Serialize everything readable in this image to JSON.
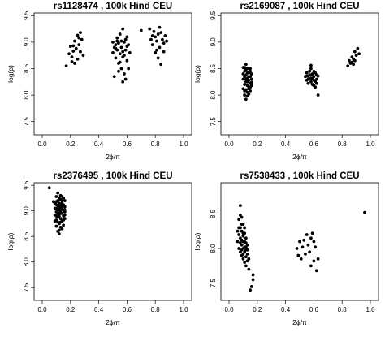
{
  "chart_data": [
    {
      "type": "scatter",
      "title": "rs1128474 , 100k Hind CEU",
      "xlabel": "2ϕ/π",
      "ylabel": "log(ρ)",
      "xlim": [
        0.0,
        1.0
      ],
      "ylim": [
        7.25,
        9.55
      ],
      "x_ticks": [
        "0.0",
        "0.2",
        "0.4",
        "0.6",
        "0.8",
        "1.0"
      ],
      "y_ticks": [
        "7.5",
        "8.0",
        "8.5",
        "9.0",
        "9.5"
      ],
      "points": [
        [
          0.17,
          8.55
        ],
        [
          0.19,
          8.78
        ],
        [
          0.2,
          8.92
        ],
        [
          0.21,
          8.72
        ],
        [
          0.22,
          8.83
        ],
        [
          0.23,
          9.02
        ],
        [
          0.23,
          8.6
        ],
        [
          0.24,
          8.88
        ],
        [
          0.25,
          9.13
        ],
        [
          0.25,
          8.68
        ],
        [
          0.26,
          8.95
        ],
        [
          0.27,
          9.18
        ],
        [
          0.27,
          8.82
        ],
        [
          0.28,
          9.05
        ],
        [
          0.29,
          8.75
        ],
        [
          0.21,
          8.63
        ],
        [
          0.26,
          9.08
        ],
        [
          0.22,
          8.93
        ],
        [
          0.5,
          8.8
        ],
        [
          0.51,
          8.9
        ],
        [
          0.52,
          8.95
        ],
        [
          0.52,
          8.7
        ],
        [
          0.53,
          8.85
        ],
        [
          0.53,
          9.08
        ],
        [
          0.54,
          8.6
        ],
        [
          0.54,
          8.98
        ],
        [
          0.55,
          8.78
        ],
        [
          0.55,
          9.15
        ],
        [
          0.56,
          8.5
        ],
        [
          0.56,
          8.9
        ],
        [
          0.57,
          9.25
        ],
        [
          0.57,
          8.72
        ],
        [
          0.58,
          9.0
        ],
        [
          0.58,
          8.4
        ],
        [
          0.59,
          8.85
        ],
        [
          0.59,
          8.3
        ],
        [
          0.6,
          9.1
        ],
        [
          0.6,
          8.65
        ],
        [
          0.61,
          8.95
        ],
        [
          0.61,
          8.5
        ],
        [
          0.51,
          8.35
        ],
        [
          0.53,
          9.02
        ],
        [
          0.55,
          8.62
        ],
        [
          0.57,
          8.82
        ],
        [
          0.59,
          9.05
        ],
        [
          0.52,
          8.88
        ],
        [
          0.56,
          9.02
        ],
        [
          0.58,
          8.75
        ],
        [
          0.6,
          8.92
        ],
        [
          0.54,
          8.45
        ],
        [
          0.57,
          8.25
        ],
        [
          0.62,
          8.8
        ],
        [
          0.5,
          9.0
        ],
        [
          0.7,
          9.22
        ],
        [
          0.76,
          9.25
        ],
        [
          0.77,
          9.05
        ],
        [
          0.78,
          8.95
        ],
        [
          0.79,
          9.2
        ],
        [
          0.8,
          8.8
        ],
        [
          0.8,
          9.1
        ],
        [
          0.81,
          9.02
        ],
        [
          0.82,
          8.7
        ],
        [
          0.82,
          9.15
        ],
        [
          0.83,
          8.9
        ],
        [
          0.83,
          9.28
        ],
        [
          0.84,
          8.58
        ],
        [
          0.85,
          9.05
        ],
        [
          0.86,
          8.98
        ],
        [
          0.87,
          9.12
        ],
        [
          0.88,
          9.02
        ],
        [
          0.78,
          9.12
        ],
        [
          0.81,
          8.85
        ],
        [
          0.84,
          9.18
        ],
        [
          0.86,
          8.82
        ]
      ]
    },
    {
      "type": "scatter",
      "title": "rs2169087 , 100k Hind CEU",
      "xlabel": "2ϕ/π",
      "ylabel": "log(ρ)",
      "xlim": [
        0.0,
        1.0
      ],
      "ylim": [
        7.25,
        9.55
      ],
      "x_ticks": [
        "0.0",
        "0.2",
        "0.4",
        "0.6",
        "0.8",
        "1.0"
      ],
      "y_ticks": [
        "7.5",
        "8.0",
        "8.5",
        "9.0",
        "9.5"
      ],
      "points": [
        [
          0.1,
          8.52
        ],
        [
          0.1,
          8.3
        ],
        [
          0.1,
          8.12
        ],
        [
          0.11,
          8.45
        ],
        [
          0.11,
          8.2
        ],
        [
          0.11,
          8.0
        ],
        [
          0.12,
          8.58
        ],
        [
          0.12,
          8.38
        ],
        [
          0.12,
          8.25
        ],
        [
          0.12,
          8.1
        ],
        [
          0.12,
          7.92
        ],
        [
          0.13,
          8.5
        ],
        [
          0.13,
          8.32
        ],
        [
          0.13,
          8.18
        ],
        [
          0.13,
          8.05
        ],
        [
          0.14,
          8.42
        ],
        [
          0.14,
          8.28
        ],
        [
          0.14,
          8.15
        ],
        [
          0.14,
          8.02
        ],
        [
          0.15,
          8.5
        ],
        [
          0.15,
          8.35
        ],
        [
          0.15,
          8.22
        ],
        [
          0.15,
          8.08
        ],
        [
          0.16,
          8.4
        ],
        [
          0.16,
          8.3
        ],
        [
          0.16,
          8.18
        ],
        [
          0.11,
          8.35
        ],
        [
          0.12,
          8.48
        ],
        [
          0.13,
          8.42
        ],
        [
          0.14,
          8.35
        ],
        [
          0.15,
          8.45
        ],
        [
          0.13,
          8.25
        ],
        [
          0.11,
          8.08
        ],
        [
          0.14,
          8.12
        ],
        [
          0.12,
          8.3
        ],
        [
          0.1,
          8.4
        ],
        [
          0.16,
          8.24
        ],
        [
          0.13,
          7.98
        ],
        [
          0.15,
          8.15
        ],
        [
          0.11,
          8.52
        ],
        [
          0.54,
          8.35
        ],
        [
          0.55,
          8.28
        ],
        [
          0.55,
          8.42
        ],
        [
          0.56,
          8.3
        ],
        [
          0.56,
          8.22
        ],
        [
          0.57,
          8.38
        ],
        [
          0.57,
          8.45
        ],
        [
          0.58,
          8.25
        ],
        [
          0.58,
          8.32
        ],
        [
          0.58,
          8.5
        ],
        [
          0.59,
          8.4
        ],
        [
          0.59,
          8.2
        ],
        [
          0.6,
          8.35
        ],
        [
          0.6,
          8.28
        ],
        [
          0.61,
          8.42
        ],
        [
          0.61,
          8.15
        ],
        [
          0.62,
          8.3
        ],
        [
          0.62,
          8.22
        ],
        [
          0.63,
          8.36
        ],
        [
          0.63,
          8.0
        ],
        [
          0.57,
          8.3
        ],
        [
          0.59,
          8.32
        ],
        [
          0.6,
          8.45
        ],
        [
          0.58,
          8.38
        ],
        [
          0.61,
          8.26
        ],
        [
          0.56,
          8.36
        ],
        [
          0.62,
          8.38
        ],
        [
          0.6,
          8.18
        ],
        [
          0.58,
          8.56
        ],
        [
          0.55,
          8.36
        ],
        [
          0.84,
          8.55
        ],
        [
          0.85,
          8.65
        ],
        [
          0.86,
          8.6
        ],
        [
          0.87,
          8.72
        ],
        [
          0.88,
          8.58
        ],
        [
          0.88,
          8.68
        ],
        [
          0.89,
          8.82
        ],
        [
          0.9,
          8.75
        ],
        [
          0.91,
          8.88
        ],
        [
          0.92,
          8.78
        ],
        [
          0.89,
          8.65
        ],
        [
          0.87,
          8.62
        ]
      ]
    },
    {
      "type": "scatter",
      "title": "rs2376495 , 100k Hind CEU",
      "xlabel": "2ϕ/π",
      "ylabel": "log(ρ)",
      "xlim": [
        0.0,
        1.0
      ],
      "ylim": [
        7.25,
        9.55
      ],
      "x_ticks": [
        "0.0",
        "0.2",
        "0.4",
        "0.6",
        "0.8",
        "1.0"
      ],
      "y_ticks": [
        "7.5",
        "8.0",
        "8.5",
        "9.0",
        "9.5"
      ],
      "points": [
        [
          0.05,
          9.45
        ],
        [
          0.08,
          9.18
        ],
        [
          0.09,
          9.05
        ],
        [
          0.09,
          8.92
        ],
        [
          0.1,
          9.28
        ],
        [
          0.1,
          8.7
        ],
        [
          0.1,
          8.98
        ],
        [
          0.1,
          9.12
        ],
        [
          0.1,
          8.82
        ],
        [
          0.11,
          9.2
        ],
        [
          0.11,
          9.0
        ],
        [
          0.11,
          8.6
        ],
        [
          0.11,
          8.88
        ],
        [
          0.11,
          9.1
        ],
        [
          0.12,
          9.25
        ],
        [
          0.12,
          8.95
        ],
        [
          0.12,
          9.05
        ],
        [
          0.12,
          8.75
        ],
        [
          0.12,
          9.15
        ],
        [
          0.12,
          8.55
        ],
        [
          0.13,
          9.3
        ],
        [
          0.13,
          9.0
        ],
        [
          0.13,
          8.85
        ],
        [
          0.13,
          9.1
        ],
        [
          0.13,
          8.68
        ],
        [
          0.13,
          9.22
        ],
        [
          0.14,
          8.95
        ],
        [
          0.14,
          9.05
        ],
        [
          0.14,
          8.8
        ],
        [
          0.14,
          9.15
        ],
        [
          0.14,
          9.28
        ],
        [
          0.15,
          9.02
        ],
        [
          0.15,
          8.9
        ],
        [
          0.15,
          9.12
        ],
        [
          0.15,
          8.72
        ],
        [
          0.16,
          9.2
        ],
        [
          0.16,
          8.98
        ],
        [
          0.16,
          9.08
        ],
        [
          0.16,
          8.85
        ],
        [
          0.09,
          9.15
        ],
        [
          0.1,
          9.05
        ],
        [
          0.11,
          8.95
        ],
        [
          0.12,
          8.9
        ],
        [
          0.13,
          8.95
        ],
        [
          0.14,
          9.1
        ],
        [
          0.15,
          8.82
        ],
        [
          0.1,
          8.9
        ],
        [
          0.11,
          9.35
        ],
        [
          0.12,
          9.1
        ],
        [
          0.13,
          9.05
        ],
        [
          0.14,
          8.65
        ],
        [
          0.15,
          9.25
        ],
        [
          0.16,
          9.02
        ],
        [
          0.09,
          8.8
        ],
        [
          0.11,
          8.78
        ],
        [
          0.13,
          8.78
        ],
        [
          0.1,
          9.18
        ],
        [
          0.12,
          8.62
        ],
        [
          0.14,
          9.2
        ],
        [
          0.16,
          8.92
        ]
      ]
    },
    {
      "type": "scatter",
      "title": "rs7538433 , 100k Hind CEU",
      "xlabel": "2ϕ/π",
      "ylabel": "log(ρ)",
      "xlim": [
        0.0,
        1.0
      ],
      "ylim": [
        7.25,
        8.95
      ],
      "x_ticks": [
        "0.0",
        "0.2",
        "0.4",
        "0.6",
        "0.8",
        "1.0"
      ],
      "y_ticks": [
        "7.5",
        "8.0",
        "8.5"
      ],
      "points": [
        [
          0.06,
          8.25
        ],
        [
          0.06,
          8.1
        ],
        [
          0.07,
          8.42
        ],
        [
          0.07,
          8.2
        ],
        [
          0.07,
          8.0
        ],
        [
          0.08,
          8.62
        ],
        [
          0.08,
          8.3
        ],
        [
          0.08,
          8.15
        ],
        [
          0.08,
          7.95
        ],
        [
          0.09,
          8.45
        ],
        [
          0.09,
          8.25
        ],
        [
          0.09,
          8.05
        ],
        [
          0.09,
          7.9
        ],
        [
          0.1,
          8.35
        ],
        [
          0.1,
          8.18
        ],
        [
          0.1,
          8.0
        ],
        [
          0.1,
          7.85
        ],
        [
          0.11,
          8.22
        ],
        [
          0.11,
          8.1
        ],
        [
          0.11,
          7.95
        ],
        [
          0.11,
          7.8
        ],
        [
          0.12,
          8.15
        ],
        [
          0.12,
          8.02
        ],
        [
          0.12,
          7.88
        ],
        [
          0.12,
          7.75
        ],
        [
          0.13,
          8.05
        ],
        [
          0.13,
          7.92
        ],
        [
          0.13,
          7.82
        ],
        [
          0.14,
          7.7
        ],
        [
          0.14,
          7.85
        ],
        [
          0.15,
          7.4
        ],
        [
          0.16,
          7.45
        ],
        [
          0.17,
          7.62
        ],
        [
          0.17,
          7.55
        ],
        [
          0.07,
          8.3
        ],
        [
          0.08,
          8.08
        ],
        [
          0.09,
          8.35
        ],
        [
          0.1,
          8.22
        ],
        [
          0.11,
          8.3
        ],
        [
          0.12,
          7.98
        ],
        [
          0.13,
          7.98
        ],
        [
          0.1,
          8.1
        ],
        [
          0.08,
          8.48
        ],
        [
          0.09,
          8.12
        ],
        [
          0.11,
          8.02
        ],
        [
          0.12,
          8.08
        ],
        [
          0.1,
          7.92
        ],
        [
          0.09,
          7.98
        ],
        [
          0.48,
          8.0
        ],
        [
          0.49,
          7.9
        ],
        [
          0.5,
          8.1
        ],
        [
          0.51,
          7.85
        ],
        [
          0.52,
          8.02
        ],
        [
          0.53,
          8.12
        ],
        [
          0.54,
          7.92
        ],
        [
          0.55,
          8.2
        ],
        [
          0.57,
          7.95
        ],
        [
          0.58,
          8.15
        ],
        [
          0.58,
          7.75
        ],
        [
          0.59,
          8.22
        ],
        [
          0.6,
          7.82
        ],
        [
          0.61,
          8.02
        ],
        [
          0.62,
          7.68
        ],
        [
          0.63,
          7.85
        ],
        [
          0.56,
          8.05
        ],
        [
          0.6,
          8.1
        ],
        [
          0.96,
          8.52
        ]
      ]
    }
  ]
}
